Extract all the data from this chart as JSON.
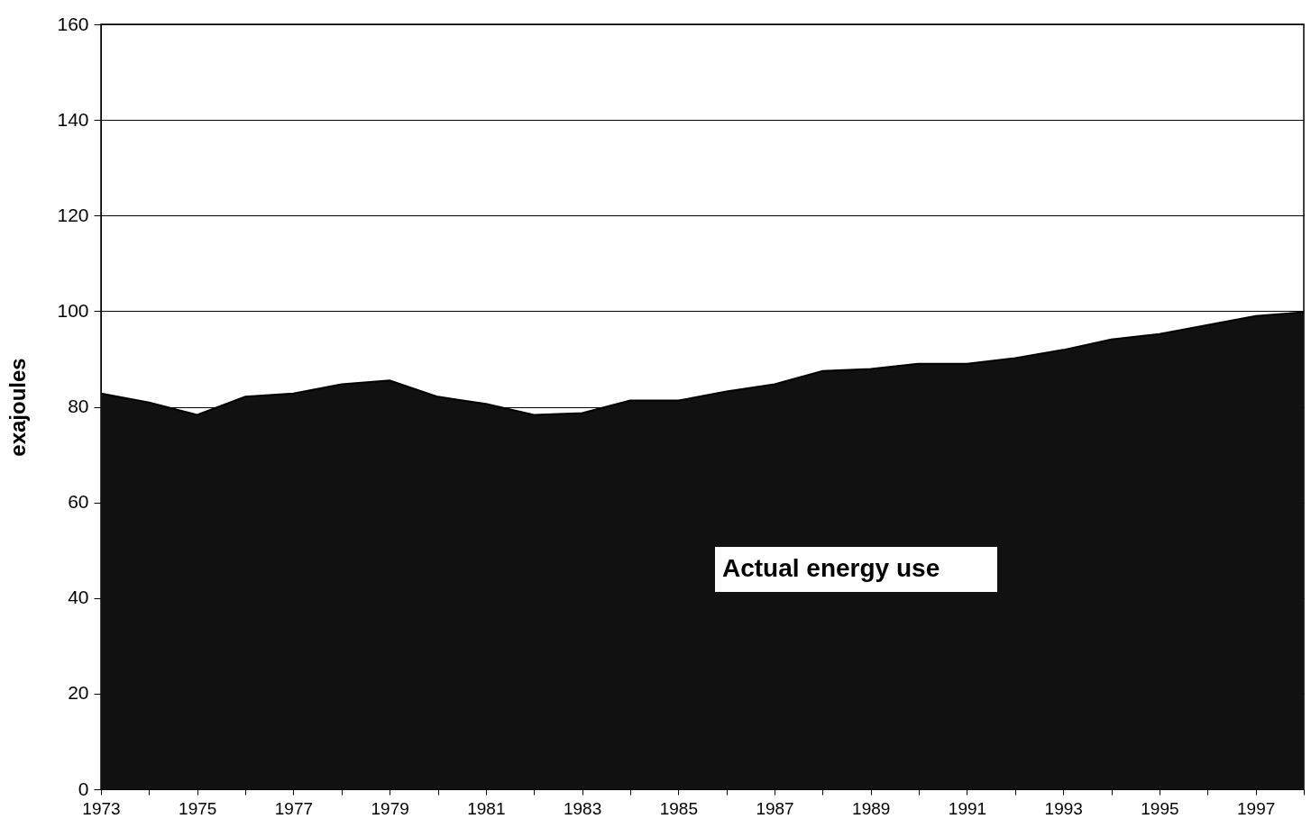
{
  "chart_data": {
    "type": "area",
    "ylabel": "exajoules",
    "categories": [
      "1973",
      null,
      "1975",
      null,
      "1977",
      null,
      "1979",
      null,
      "1981",
      null,
      "1983",
      null,
      "1985",
      null,
      "1987",
      null,
      "1989",
      null,
      "1991",
      null,
      "1993",
      null,
      "1995",
      null,
      "1997",
      null
    ],
    "series": [
      {
        "name": "Actual energy use",
        "color": "#111111",
        "values": [
          82.8,
          80.9,
          78.3,
          82.1,
          82.8,
          84.7,
          85.5,
          82.1,
          80.6,
          78.3,
          78.7,
          81.3,
          81.3,
          83.2,
          84.7,
          87.5,
          87.9,
          89.0,
          89.0,
          90.2,
          91.9,
          94.1,
          95.2,
          97.1,
          99.0,
          99.8
        ]
      }
    ],
    "ylim": [
      0,
      160
    ],
    "yticks": [
      0,
      20,
      40,
      60,
      80,
      100,
      120,
      140,
      160
    ],
    "grid": "y"
  }
}
